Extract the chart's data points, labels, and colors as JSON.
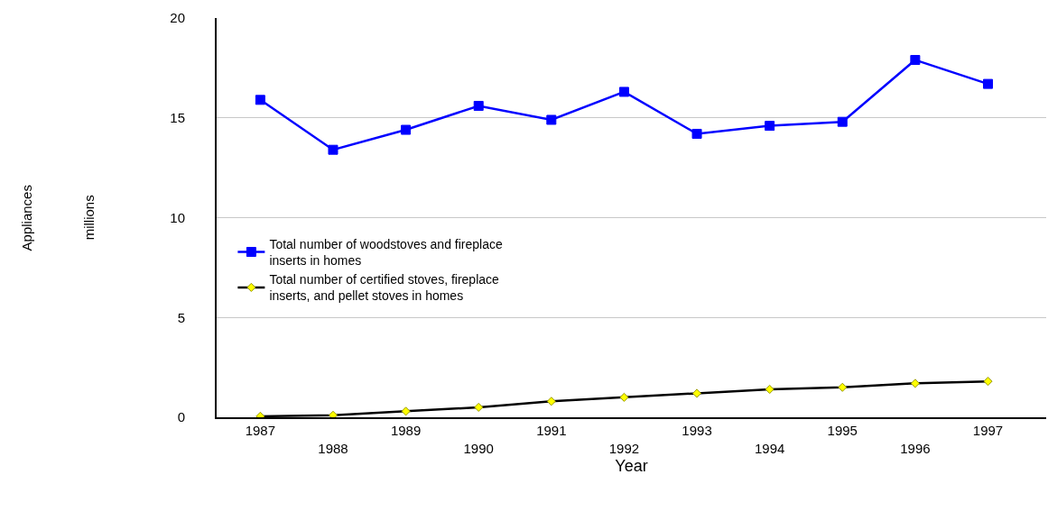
{
  "chart_data": {
    "type": "line",
    "xlabel": "Year",
    "annotations": [
      "Appliances",
      "millions"
    ],
    "categories": [
      "1987",
      "1988",
      "1989",
      "1990",
      "1991",
      "1992",
      "1993",
      "1994",
      "1995",
      "1996",
      "1997"
    ],
    "series": [
      {
        "name": "Total number of woodstoves and fireplace inserts in homes",
        "color": "#0000ff",
        "marker": "square",
        "values": [
          15.9,
          13.4,
          14.4,
          15.6,
          14.9,
          16.3,
          14.2,
          14.6,
          14.8,
          17.9,
          16.7
        ]
      },
      {
        "name": "Total number of certified stoves, fireplace inserts, and pellet stoves in homes",
        "color": "#000000",
        "marker": "diamond",
        "values": [
          0.05,
          0.1,
          0.3,
          0.5,
          0.8,
          1.0,
          1.2,
          1.4,
          1.5,
          1.7,
          1.8
        ]
      }
    ],
    "ylim": [
      0,
      20
    ],
    "yticks": [
      0,
      5,
      10,
      15,
      20
    ],
    "grid": "y",
    "legend": "left"
  }
}
